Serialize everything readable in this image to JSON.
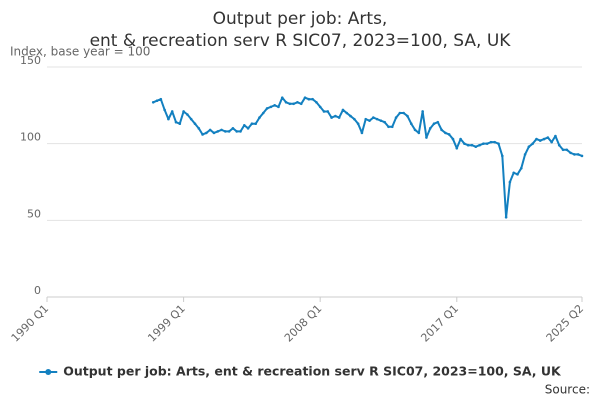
{
  "chart_data": {
    "type": "line",
    "title": "Output per job: Arts, ent & recreation serv R SIC07, 2023=100, SA, UK",
    "y_label": "Index, base year = 100",
    "source": "Source:",
    "categories": [
      "1990 Q1",
      null,
      null,
      null,
      null,
      null,
      null,
      null,
      null,
      null,
      null,
      null,
      null,
      null,
      null,
      null,
      null,
      null,
      null,
      null,
      null,
      null,
      null,
      null,
      null,
      null,
      null,
      null,
      null,
      null,
      null,
      null,
      null,
      null,
      null,
      null,
      "1999 Q1",
      null,
      null,
      null,
      null,
      null,
      null,
      null,
      null,
      null,
      null,
      null,
      null,
      null,
      null,
      null,
      null,
      null,
      null,
      null,
      null,
      null,
      null,
      null,
      null,
      null,
      null,
      null,
      null,
      null,
      null,
      null,
      null,
      null,
      null,
      null,
      "2008 Q1",
      null,
      null,
      null,
      null,
      null,
      null,
      null,
      null,
      null,
      null,
      null,
      null,
      null,
      null,
      null,
      null,
      null,
      null,
      null,
      null,
      null,
      null,
      null,
      null,
      null,
      null,
      null,
      null,
      null,
      null,
      null,
      null,
      null,
      null,
      null,
      "2017 Q1",
      null,
      null,
      null,
      null,
      null,
      null,
      null,
      null,
      null,
      null,
      null,
      null,
      null,
      null,
      null,
      null,
      null,
      null,
      null,
      null,
      null,
      null,
      null,
      null,
      null,
      null,
      null,
      null,
      null,
      null,
      null,
      null,
      "2025 Q2"
    ],
    "series": [
      {
        "name": "Output per job: Arts, ent & recreation serv R SIC07, 2023=100, SA, UK",
        "color": "#1380c0",
        "values": [
          null,
          null,
          null,
          null,
          null,
          null,
          null,
          null,
          null,
          null,
          null,
          null,
          null,
          null,
          null,
          null,
          null,
          null,
          null,
          null,
          null,
          null,
          null,
          null,
          null,
          null,
          null,
          null,
          127,
          128,
          129,
          122,
          116,
          121,
          114,
          113,
          121,
          119,
          116,
          113,
          110,
          106,
          107,
          109,
          107,
          108,
          109,
          108,
          108,
          110,
          108,
          108,
          112,
          110,
          113,
          113,
          117,
          120,
          123,
          124,
          125,
          124,
          130,
          127,
          126,
          126,
          127,
          126,
          130,
          129,
          129,
          127,
          124,
          121,
          121,
          117,
          118,
          117,
          122,
          120,
          118,
          116,
          113,
          107,
          116,
          115,
          117,
          116,
          115,
          114,
          111,
          111,
          117,
          120,
          120,
          118,
          113,
          109,
          107,
          121,
          104,
          110,
          113,
          114,
          109,
          107,
          106,
          103,
          97,
          103,
          100,
          99,
          99,
          98,
          99,
          100,
          100,
          101,
          101,
          100,
          92,
          52,
          75,
          81,
          80,
          84,
          93,
          98,
          100,
          103,
          102,
          103,
          104,
          101,
          105,
          99,
          96,
          96,
          94,
          93,
          93,
          92
        ]
      }
    ],
    "ylim": [
      0,
      150
    ],
    "yticks": [
      0,
      50,
      100,
      150
    ],
    "grid": true
  }
}
